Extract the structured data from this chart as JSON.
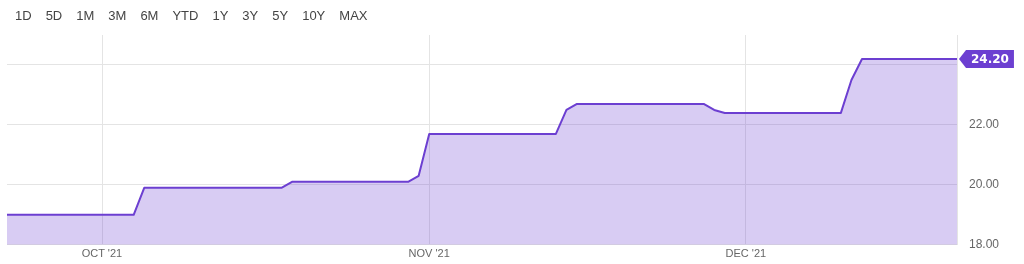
{
  "chart_data": {
    "type": "area",
    "x": [
      "2021-09-22",
      "2021-10-04",
      "2021-10-05",
      "2021-10-18",
      "2021-10-19",
      "2021-10-30",
      "2021-10-31",
      "2021-11-01",
      "2021-11-13",
      "2021-11-14",
      "2021-11-15",
      "2021-11-27",
      "2021-11-28",
      "2021-11-29",
      "2021-12-10",
      "2021-12-11",
      "2021-12-12",
      "2021-12-21"
    ],
    "series": [
      {
        "color": "#6c3fd1",
        "values": [
          19.0,
          19.0,
          19.9,
          19.9,
          20.1,
          20.1,
          20.3,
          21.7,
          21.7,
          22.5,
          22.7,
          22.7,
          22.5,
          22.4,
          22.4,
          23.5,
          24.2,
          24.2
        ]
      }
    ],
    "xlim": [
      "2021-09-22",
      "2021-12-21"
    ],
    "xticks": [
      {
        "value": "2021-10-01",
        "label": "OCT '21"
      },
      {
        "value": "2021-11-01",
        "label": "NOV '21"
      },
      {
        "value": "2021-12-01",
        "label": "DEC '21"
      }
    ],
    "ylim": [
      18,
      25
    ],
    "yticks": [
      {
        "value": 18,
        "label": "18.00"
      },
      {
        "value": 20,
        "label": "20.00"
      },
      {
        "value": 22,
        "label": "22.00"
      },
      {
        "value": 24,
        "label": null
      }
    ],
    "grid": true,
    "marker": "none",
    "annotations": [
      "1D",
      "5D",
      "1M",
      "3M",
      "6M",
      "YTD",
      "1Y",
      "3Y",
      "5Y",
      "10Y",
      "MAX",
      {
        "text": "24.20",
        "x": "2021-12-21",
        "y": 24.2
      }
    ]
  }
}
